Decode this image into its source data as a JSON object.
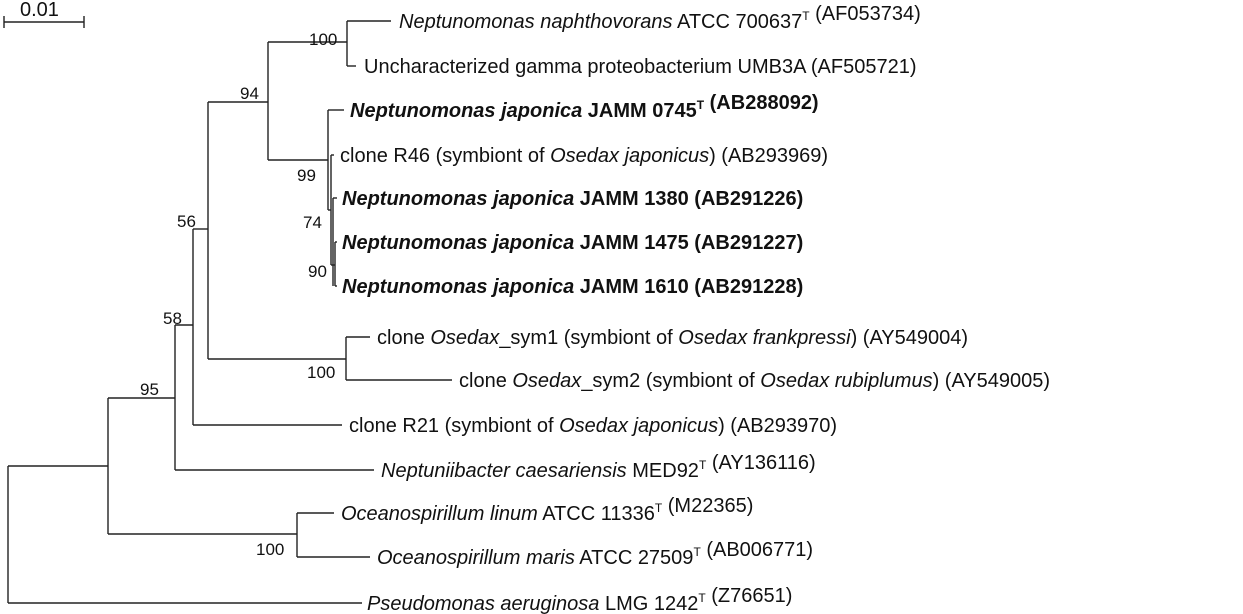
{
  "scale_bar": {
    "label": "0.01"
  },
  "taxa": [
    {
      "id": "t1",
      "parts": [
        {
          "t": "Neptunomonas naphthovorans",
          "i": true
        },
        {
          "t": " ATCC 700637"
        },
        {
          "t": "T",
          "sup": true
        },
        {
          "t": " (AF053734)"
        }
      ]
    },
    {
      "id": "t2",
      "parts": [
        {
          "t": "Uncharacterized gamma proteobacterium UMB3A (AF505721)"
        }
      ]
    },
    {
      "id": "t3",
      "bold": true,
      "parts": [
        {
          "t": "Neptunomonas japonica",
          "i": true
        },
        {
          "t": " JAMM 0745"
        },
        {
          "t": "T",
          "sup": true
        },
        {
          "t": " (AB288092)"
        }
      ]
    },
    {
      "id": "t4",
      "parts": [
        {
          "t": "clone R46 (symbiont of "
        },
        {
          "t": "Osedax japonicus",
          "i": true
        },
        {
          "t": ") (AB293969)"
        }
      ]
    },
    {
      "id": "t5",
      "bold": true,
      "parts": [
        {
          "t": "Neptunomonas japonica",
          "i": true
        },
        {
          "t": " JAMM 1380 (AB291226)"
        }
      ]
    },
    {
      "id": "t6",
      "bold": true,
      "parts": [
        {
          "t": "Neptunomonas japonica",
          "i": true
        },
        {
          "t": " JAMM 1475 (AB291227)"
        }
      ]
    },
    {
      "id": "t7",
      "bold": true,
      "parts": [
        {
          "t": "Neptunomonas japonica",
          "i": true
        },
        {
          "t": " JAMM 1610 (AB291228)"
        }
      ]
    },
    {
      "id": "t8",
      "parts": [
        {
          "t": "clone "
        },
        {
          "t": "Osedax",
          "i": true
        },
        {
          "t": "_sym1 (symbiont of "
        },
        {
          "t": "Osedax frankpressi",
          "i": true
        },
        {
          "t": ") (AY549004)"
        }
      ]
    },
    {
      "id": "t9",
      "parts": [
        {
          "t": "clone "
        },
        {
          "t": "Osedax",
          "i": true
        },
        {
          "t": "_sym2 (symbiont of "
        },
        {
          "t": "Osedax rubiplumus",
          "i": true
        },
        {
          "t": ") (AY549005)"
        }
      ]
    },
    {
      "id": "t10",
      "parts": [
        {
          "t": "clone R21 (symbiont of "
        },
        {
          "t": "Osedax japonicus",
          "i": true
        },
        {
          "t": ") (AB293970)"
        }
      ]
    },
    {
      "id": "t11",
      "parts": [
        {
          "t": "Neptuniibacter caesariensis",
          "i": true
        },
        {
          "t": " MED92"
        },
        {
          "t": "T",
          "sup": true
        },
        {
          "t": " (AY136116)"
        }
      ]
    },
    {
      "id": "t12",
      "parts": [
        {
          "t": "Oceanospirillum linum",
          "i": true
        },
        {
          "t": " ATCC 11336"
        },
        {
          "t": "T",
          "sup": true
        },
        {
          "t": " (M22365)"
        }
      ]
    },
    {
      "id": "t13",
      "parts": [
        {
          "t": "Oceanospirillum maris",
          "i": true
        },
        {
          "t": " ATCC 27509"
        },
        {
          "t": "T",
          "sup": true
        },
        {
          "t": " (AB006771)"
        }
      ]
    },
    {
      "id": "t14",
      "parts": [
        {
          "t": "Pseudomonas aeruginosa",
          "i": true
        },
        {
          "t": " LMG 1242"
        },
        {
          "t": "T",
          "sup": true
        },
        {
          "t": " (Z76651)"
        }
      ]
    }
  ],
  "bootstrap": {
    "b1": "100",
    "b2": "94",
    "b3": "99",
    "b4": "74",
    "b5": "90",
    "b6": "56",
    "b7": "58",
    "b8": "100",
    "b9": "95",
    "b10": "100"
  }
}
